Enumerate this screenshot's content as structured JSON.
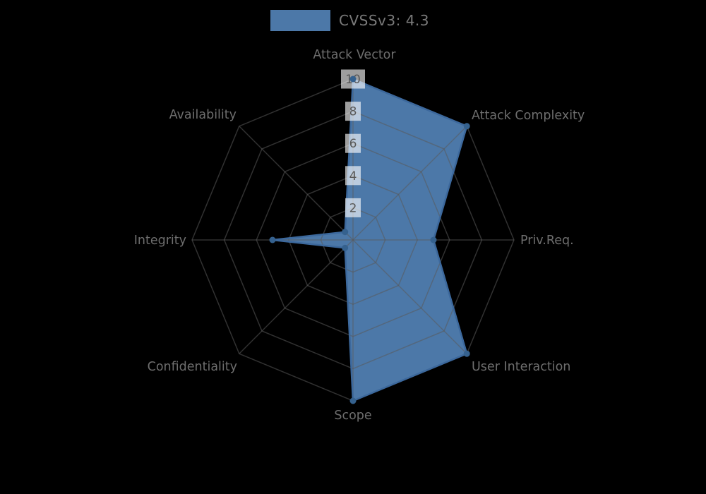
{
  "page": {
    "background_color": "#000000"
  },
  "legend": {
    "label": "CVSSv3: 4.3",
    "swatch_color": "#4c78a8",
    "position": "top-center"
  },
  "chart_data": {
    "type": "radar",
    "title": "CVSSv3: 4.3",
    "categories": [
      "Attack Vector",
      "Attack Complexity",
      "Priv.Req.",
      "User Interaction",
      "Scope",
      "Confidentiality",
      "Integrity",
      "Availability"
    ],
    "series": [
      {
        "name": "CVSSv3: 4.3",
        "values": [
          10,
          10,
          5,
          10,
          10,
          0.7,
          5,
          0.7
        ]
      }
    ],
    "radial_ticks": [
      2,
      4,
      6,
      8,
      10
    ],
    "rlim": [
      0,
      10
    ],
    "start_angle_deg": 90,
    "direction": "clockwise",
    "grid": true,
    "legend_position": "top",
    "colors": {
      "fill": "#4c78a8",
      "outline": "#3c689c",
      "marker": "#35618e",
      "grid": "rgba(90,90,90,0.55)",
      "axis_label": "#6e6e6e",
      "tick_text": "#585858",
      "tick_box": "rgba(255,255,255,0.62)"
    }
  }
}
